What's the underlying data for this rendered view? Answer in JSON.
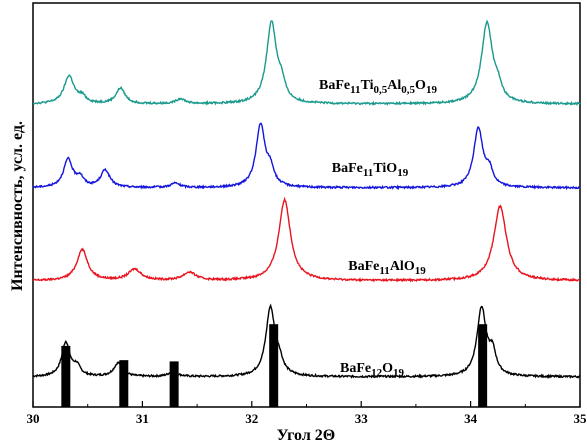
{
  "chart_data": {
    "type": "line",
    "xlabel": "Угол 2Θ",
    "ylabel": "Интенсивность, усл. ед.",
    "xlim": [
      30,
      35
    ],
    "x_ticks": [
      "30",
      "31",
      "32",
      "33",
      "34",
      "35"
    ],
    "y_ticks_visible": false,
    "grid": false,
    "legend": "none",
    "series": [
      {
        "name": "BaFe12O19",
        "label_parts": [
          [
            "BaFe",
            ""
          ],
          [
            "12",
            "sub"
          ],
          [
            "O",
            ""
          ],
          [
            "19",
            "sub"
          ]
        ],
        "color": "#000000",
        "offset": 0,
        "baseline": 0.05,
        "peaks": [
          {
            "x": 30.3,
            "h": 0.55,
            "w": 0.045
          },
          {
            "x": 30.4,
            "h": 0.15,
            "w": 0.04
          },
          {
            "x": 30.78,
            "h": 0.22,
            "w": 0.05
          },
          {
            "x": 31.28,
            "h": 0.08,
            "w": 0.05
          },
          {
            "x": 32.17,
            "h": 1.1,
            "w": 0.05
          },
          {
            "x": 32.25,
            "h": 0.2,
            "w": 0.04
          },
          {
            "x": 34.1,
            "h": 1.1,
            "w": 0.05
          },
          {
            "x": 34.2,
            "h": 0.35,
            "w": 0.04
          }
        ]
      },
      {
        "name": "BaFe11AlO19",
        "label_parts": [
          [
            "BaFe",
            ""
          ],
          [
            "11",
            "sub"
          ],
          [
            "AlO",
            ""
          ],
          [
            "19",
            "sub"
          ]
        ],
        "color": "#e8141e",
        "offset": 1.55,
        "baseline": 0.05,
        "peaks": [
          {
            "x": 30.45,
            "h": 0.5,
            "w": 0.06
          },
          {
            "x": 30.93,
            "h": 0.18,
            "w": 0.07
          },
          {
            "x": 31.43,
            "h": 0.13,
            "w": 0.07
          },
          {
            "x": 32.3,
            "h": 1.3,
            "w": 0.065
          },
          {
            "x": 34.27,
            "h": 1.2,
            "w": 0.07
          }
        ]
      },
      {
        "name": "BaFe11TiO19",
        "label_parts": [
          [
            "BaFe",
            ""
          ],
          [
            "11",
            "sub"
          ],
          [
            "TiO",
            ""
          ],
          [
            "19",
            "sub"
          ]
        ],
        "color": "#1414dc",
        "offset": 3.05,
        "baseline": 0.05,
        "peaks": [
          {
            "x": 30.32,
            "h": 0.45,
            "w": 0.05
          },
          {
            "x": 30.43,
            "h": 0.15,
            "w": 0.04
          },
          {
            "x": 30.66,
            "h": 0.28,
            "w": 0.05
          },
          {
            "x": 31.3,
            "h": 0.07,
            "w": 0.05
          },
          {
            "x": 32.08,
            "h": 1.0,
            "w": 0.05
          },
          {
            "x": 32.17,
            "h": 0.25,
            "w": 0.04
          },
          {
            "x": 34.07,
            "h": 0.95,
            "w": 0.05
          },
          {
            "x": 34.17,
            "h": 0.25,
            "w": 0.04
          }
        ]
      },
      {
        "name": "BaFe11Ti0,5Al0,5O19",
        "label_parts": [
          [
            "BaFe",
            ""
          ],
          [
            "11",
            "sub"
          ],
          [
            "Ti",
            ""
          ],
          [
            "0,5",
            "sub"
          ],
          [
            "Al",
            ""
          ],
          [
            "0,5",
            "sub"
          ],
          [
            "O",
            ""
          ],
          [
            "19",
            "sub"
          ]
        ],
        "color": "#1a9a8c",
        "offset": 4.4,
        "baseline": 0.05,
        "peaks": [
          {
            "x": 30.33,
            "h": 0.45,
            "w": 0.055
          },
          {
            "x": 30.45,
            "h": 0.1,
            "w": 0.04
          },
          {
            "x": 30.8,
            "h": 0.25,
            "w": 0.05
          },
          {
            "x": 31.35,
            "h": 0.08,
            "w": 0.05
          },
          {
            "x": 32.18,
            "h": 1.3,
            "w": 0.055
          },
          {
            "x": 32.27,
            "h": 0.25,
            "w": 0.04
          },
          {
            "x": 34.15,
            "h": 1.3,
            "w": 0.06
          },
          {
            "x": 34.25,
            "h": 0.2,
            "w": 0.04
          }
        ]
      }
    ],
    "reference_bars": [
      {
        "x": 30.3,
        "h": 0.55
      },
      {
        "x": 30.83,
        "h": 0.32
      },
      {
        "x": 31.29,
        "h": 0.3
      },
      {
        "x": 32.2,
        "h": 0.9
      },
      {
        "x": 34.11,
        "h": 0.9
      }
    ]
  }
}
